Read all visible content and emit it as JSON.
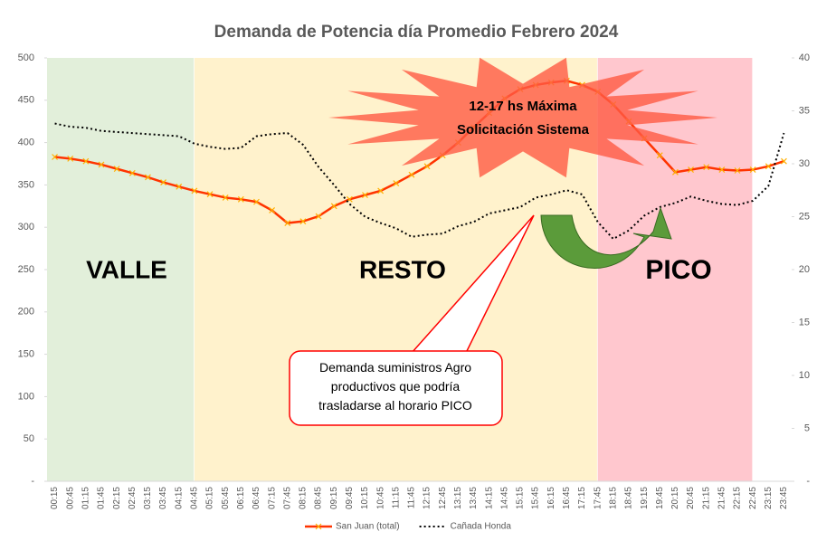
{
  "chart_data": {
    "type": "line",
    "title": "Demanda de Potencia día Promedio Febrero 2024",
    "categories": [
      "00:15",
      "00:45",
      "01:15",
      "01:45",
      "02:15",
      "02:45",
      "03:15",
      "03:45",
      "04:15",
      "04:45",
      "05:15",
      "05:45",
      "06:15",
      "06:45",
      "07:15",
      "07:45",
      "08:15",
      "08:45",
      "09:15",
      "09:45",
      "10:15",
      "10:45",
      "11:15",
      "11:45",
      "12:15",
      "12:45",
      "13:15",
      "13:45",
      "14:15",
      "14:45",
      "15:15",
      "15:45",
      "16:15",
      "16:45",
      "17:15",
      "17:45",
      "18:15",
      "18:45",
      "19:15",
      "19:45",
      "20:15",
      "20:45",
      "21:15",
      "21:45",
      "22:15",
      "22:45",
      "23:15",
      "23:45"
    ],
    "series": [
      {
        "name": "San Juan (total)",
        "color": "#ff3300",
        "values": [
          383,
          381,
          378,
          374,
          369,
          364,
          359,
          353,
          348,
          343,
          339,
          335,
          333,
          330,
          320,
          305,
          307,
          313,
          325,
          333,
          338,
          343,
          352,
          362,
          372,
          385,
          400,
          418,
          435,
          452,
          463,
          468,
          471,
          473,
          468,
          460,
          445,
          425,
          405,
          385,
          365,
          368,
          371,
          368,
          367,
          368,
          372,
          378
        ]
      },
      {
        "name": "Cañada Honda",
        "color": "#000000",
        "axis": "y2",
        "values": [
          33.8,
          33.5,
          33.4,
          33.1,
          33.0,
          32.9,
          32.8,
          32.7,
          32.6,
          31.9,
          31.6,
          31.4,
          31.5,
          32.6,
          32.8,
          32.9,
          31.8,
          29.7,
          28.0,
          26.2,
          25.0,
          24.4,
          23.9,
          23.1,
          23.3,
          23.4,
          24.1,
          24.5,
          25.3,
          25.6,
          25.9,
          26.8,
          27.1,
          27.5,
          27.1,
          24.5,
          22.9,
          23.7,
          25.1,
          25.9,
          26.3,
          26.9,
          26.5,
          26.2,
          26.1,
          26.5,
          27.9,
          32.9
        ]
      }
    ],
    "ylim": [
      0,
      500
    ],
    "yticks": [
      {
        "value": 0,
        "label": "-"
      },
      50,
      100,
      150,
      200,
      250,
      300,
      350,
      400,
      450,
      500
    ],
    "y2lim": [
      0,
      40
    ],
    "y2ticks": [
      {
        "value": 0,
        "label": "-"
      },
      5,
      10,
      15,
      20,
      25,
      30,
      35,
      40
    ],
    "zones": [
      {
        "label": "VALLE",
        "color": "#e2efda"
      },
      {
        "label": "RESTO",
        "color": "#fff2cc"
      },
      {
        "label": "PICO",
        "color": "#ffc7ce"
      }
    ],
    "annotations": [
      "12-17 hs Máxima Solicitación Sistema",
      "Demanda suministros Agro productivos que podría trasladarse al horario PICO"
    ]
  }
}
